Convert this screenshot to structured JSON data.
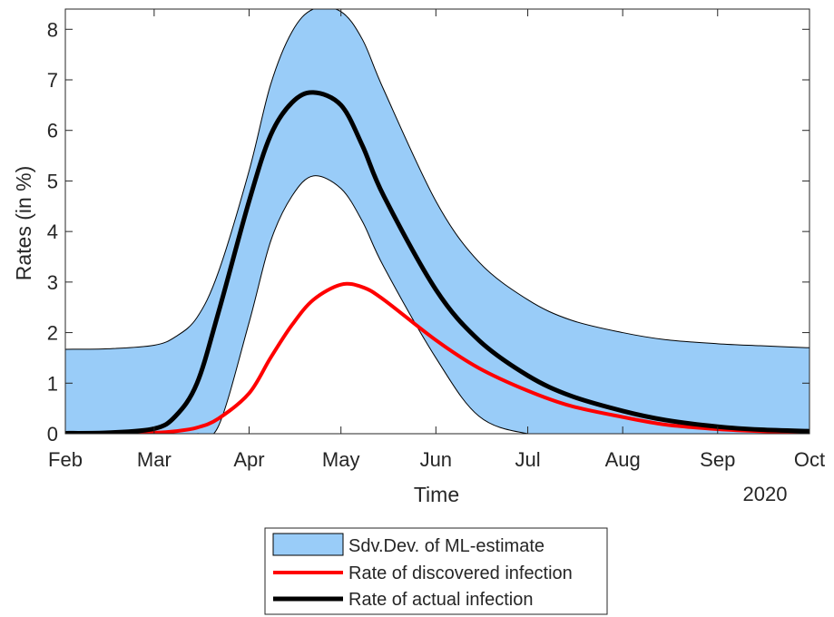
{
  "chart_data": {
    "type": "line",
    "xlabel": "Time",
    "ylabel": "Rates (in %)",
    "year_label": "2020",
    "x_tick_labels": [
      "Feb",
      "Mar",
      "Apr",
      "May",
      "Jun",
      "Jul",
      "Aug",
      "Sep",
      "Oct"
    ],
    "x_tick_dates": [
      "2020-02-01",
      "2020-03-01",
      "2020-04-01",
      "2020-05-01",
      "2020-06-01",
      "2020-07-01",
      "2020-08-01",
      "2020-09-01",
      "2020-10-01"
    ],
    "xlim": [
      "2020-02-01",
      "2020-10-01"
    ],
    "ylim": [
      0,
      8.4
    ],
    "y_ticks": [
      0,
      1,
      2,
      3,
      4,
      5,
      6,
      7,
      8
    ],
    "grid": false,
    "legend_position": "bottom-center",
    "colors": {
      "band": "#99ccf8",
      "discovered": "#ff0000",
      "actual": "#000000"
    },
    "x": [
      "2020-02-01",
      "2020-02-15",
      "2020-03-01",
      "2020-03-08",
      "2020-03-15",
      "2020-03-22",
      "2020-04-01",
      "2020-04-08",
      "2020-04-15",
      "2020-04-22",
      "2020-05-01",
      "2020-05-08",
      "2020-05-15",
      "2020-06-01",
      "2020-06-15",
      "2020-07-01",
      "2020-07-15",
      "2020-08-01",
      "2020-08-15",
      "2020-09-01",
      "2020-09-15",
      "2020-10-01"
    ],
    "band": {
      "name": "Sdv.Dev. of ML-estimate",
      "upper": [
        1.67,
        1.68,
        1.75,
        1.92,
        2.3,
        3.2,
        5.2,
        6.9,
        7.95,
        8.4,
        8.35,
        7.8,
        6.8,
        4.6,
        3.4,
        2.65,
        2.25,
        2.0,
        1.86,
        1.78,
        1.74,
        1.7
      ],
      "lower": [
        0,
        0,
        0,
        0,
        0,
        0.15,
        2.2,
        3.8,
        4.7,
        5.1,
        4.85,
        4.2,
        3.3,
        1.5,
        0.35,
        0,
        0,
        0,
        0,
        0,
        0,
        0
      ]
    },
    "series": [
      {
        "name": "Rate of discovered infection",
        "values": [
          0,
          0,
          0.02,
          0.05,
          0.12,
          0.3,
          0.8,
          1.5,
          2.15,
          2.65,
          2.95,
          2.9,
          2.65,
          1.85,
          1.3,
          0.85,
          0.55,
          0.33,
          0.18,
          0.09,
          0.05,
          0.03
        ]
      },
      {
        "name": "Rate of actual infection",
        "values": [
          0.01,
          0.02,
          0.1,
          0.35,
          1.0,
          2.4,
          4.6,
          5.9,
          6.55,
          6.75,
          6.5,
          5.7,
          4.7,
          2.85,
          1.85,
          1.15,
          0.75,
          0.45,
          0.27,
          0.14,
          0.08,
          0.05
        ]
      }
    ]
  }
}
